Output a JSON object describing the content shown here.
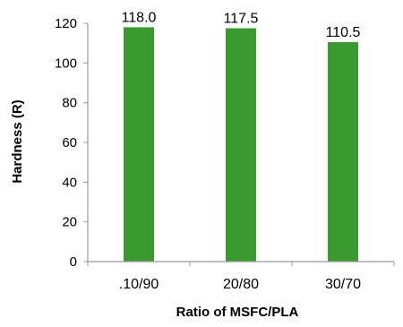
{
  "chart_data": {
    "type": "bar",
    "categories": [
      ".10/90",
      "20/80",
      "30/70"
    ],
    "values": [
      118.0,
      117.5,
      110.5
    ],
    "data_labels": [
      "118.0",
      "117.5",
      "110.5"
    ],
    "title": "",
    "xlabel": "Ratio of MSFC/PLA",
    "ylabel": "Hardness (R)",
    "ylim": [
      0,
      120
    ],
    "yticks": [
      0,
      20,
      40,
      60,
      80,
      100,
      120
    ],
    "grid": false,
    "legend": "none",
    "bar_color": "#3a9a2e",
    "axis_color": "#999999",
    "text_color": "#000000"
  }
}
